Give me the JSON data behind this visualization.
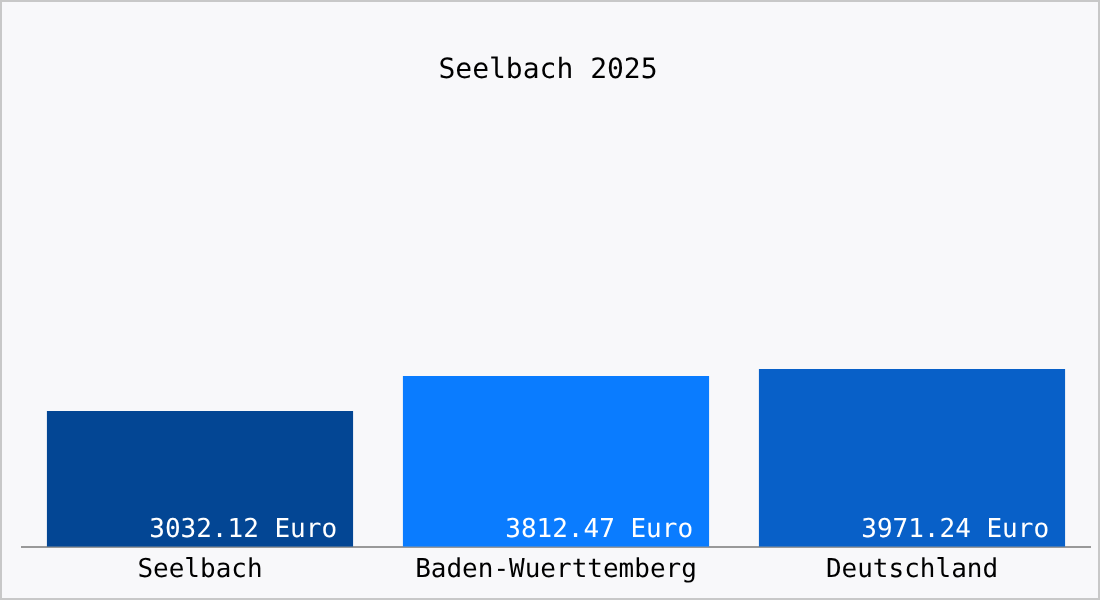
{
  "chart_data": {
    "type": "bar",
    "title": "Seelbach 2025",
    "categories": [
      "Seelbach",
      "Baden-Wuerttemberg",
      "Deutschland"
    ],
    "values": [
      3032.12,
      3812.47,
      3971.24
    ],
    "colors": [
      "#034694",
      "#0a7cff",
      "#0860c8"
    ],
    "value_labels": [
      "3032.12 Euro",
      "3812.47 Euro",
      "3971.24 Euro"
    ],
    "tick_labels": "x",
    "grid": false,
    "legend": false
  }
}
